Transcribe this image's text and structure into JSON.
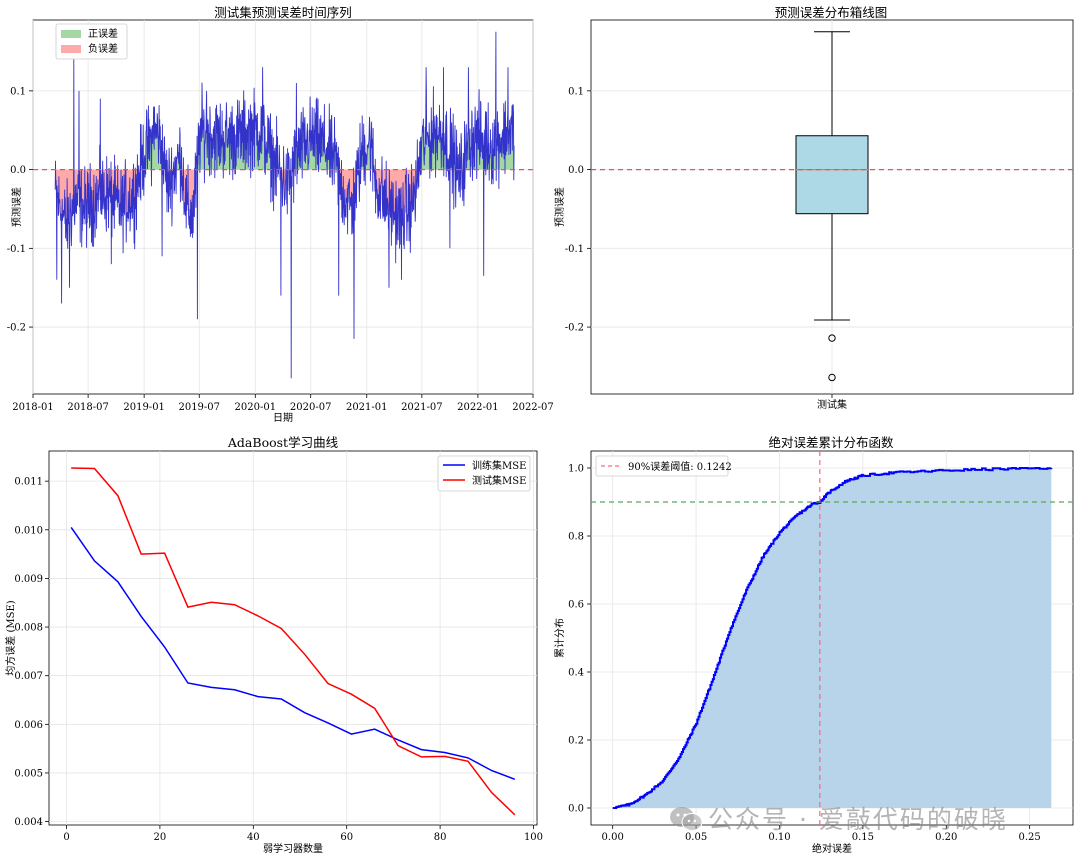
{
  "watermark": {
    "text": "公众号 · 爱敲代码的破晓"
  },
  "chart_data": [
    {
      "type": "area",
      "title": "测试集预测误差时间序列",
      "xlabel": "日期",
      "ylabel": "预测误差",
      "x_ticks": [
        "2018-01",
        "2018-07",
        "2019-01",
        "2019-07",
        "2020-01",
        "2020-07",
        "2021-01",
        "2021-07",
        "2022-01",
        "2022-07"
      ],
      "y_ticks": [
        -0.2,
        -0.1,
        0.0,
        0.1
      ],
      "xlim": [
        "2018-01-01",
        "2022-07-01"
      ],
      "ylim": [
        -0.285,
        0.19
      ],
      "legend": [
        {
          "label": "正误差",
          "color": "#a3d7a3"
        },
        {
          "label": "负误差",
          "color": "#ffaaaa"
        }
      ],
      "legend_position": "top-left",
      "zero_line": 0,
      "line_color": "#3333cc",
      "x_start": "2018-03-15",
      "x_end": "2022-04-30",
      "noise": 0.05,
      "anchors": [
        [
          "2018-03-15",
          -0.03
        ],
        [
          "2018-04-20",
          -0.07
        ],
        [
          "2018-05-20",
          -0.04
        ],
        [
          "2018-06-20",
          -0.05
        ],
        [
          "2018-07-20",
          -0.04
        ],
        [
          "2018-09-01",
          -0.03
        ],
        [
          "2018-10-15",
          -0.05
        ],
        [
          "2018-12-01",
          -0.03
        ],
        [
          "2019-01-01",
          0.02
        ],
        [
          "2019-02-15",
          0.05
        ],
        [
          "2019-03-20",
          -0.02
        ],
        [
          "2019-05-01",
          0.02
        ],
        [
          "2019-05-20",
          -0.05
        ],
        [
          "2019-06-10",
          -0.06
        ],
        [
          "2019-07-05",
          0.05
        ],
        [
          "2019-09-01",
          0.04
        ],
        [
          "2019-11-01",
          0.04
        ],
        [
          "2019-12-20",
          0.05
        ],
        [
          "2020-01-20",
          0.05
        ],
        [
          "2020-03-01",
          0.01
        ],
        [
          "2020-04-15",
          -0.02
        ],
        [
          "2020-05-20",
          0.02
        ],
        [
          "2020-07-01",
          0.04
        ],
        [
          "2020-08-15",
          0.03
        ],
        [
          "2020-09-20",
          0.01
        ],
        [
          "2020-10-15",
          -0.03
        ],
        [
          "2020-11-15",
          -0.05
        ],
        [
          "2020-12-15",
          0.02
        ],
        [
          "2021-01-10",
          0.04
        ],
        [
          "2021-02-01",
          -0.02
        ],
        [
          "2021-03-01",
          -0.04
        ],
        [
          "2021-04-15",
          -0.06
        ],
        [
          "2021-05-20",
          -0.05
        ],
        [
          "2021-06-10",
          -0.03
        ],
        [
          "2021-07-01",
          0.03
        ],
        [
          "2021-08-20",
          0.05
        ],
        [
          "2021-10-01",
          0.03
        ],
        [
          "2021-11-01",
          -0.01
        ],
        [
          "2021-12-10",
          0.04
        ],
        [
          "2022-01-15",
          0.04
        ],
        [
          "2022-02-15",
          0.03
        ],
        [
          "2022-03-15",
          0.04
        ],
        [
          "2022-04-30",
          0.05
        ]
      ],
      "extremes": [
        [
          "2018-03-20",
          -0.14
        ],
        [
          "2018-04-05",
          -0.17
        ],
        [
          "2018-05-01",
          -0.15
        ],
        [
          "2018-05-15",
          0.14
        ],
        [
          "2018-06-01",
          0.1
        ],
        [
          "2018-08-10",
          0.09
        ],
        [
          "2018-09-15",
          -0.12
        ],
        [
          "2019-02-01",
          0.08
        ],
        [
          "2019-03-01",
          -0.11
        ],
        [
          "2019-06-25",
          -0.19
        ],
        [
          "2019-07-25",
          0.1
        ],
        [
          "2020-01-25",
          0.13
        ],
        [
          "2020-03-25",
          -0.16
        ],
        [
          "2020-04-28",
          -0.265
        ],
        [
          "2020-05-15",
          0.11
        ],
        [
          "2020-10-01",
          -0.16
        ],
        [
          "2020-11-20",
          -0.215
        ],
        [
          "2021-03-15",
          -0.15
        ],
        [
          "2021-04-25",
          -0.14
        ],
        [
          "2021-07-15",
          0.13
        ],
        [
          "2021-09-10",
          0.13
        ],
        [
          "2021-10-01",
          -0.1
        ],
        [
          "2021-12-01",
          0.13
        ],
        [
          "2022-01-20",
          -0.135
        ],
        [
          "2022-03-01",
          0.175
        ],
        [
          "2022-04-10",
          0.13
        ]
      ]
    },
    {
      "type": "box",
      "title": "预测误差分布箱线图",
      "ylabel": "预测误差",
      "categories": [
        "测试集"
      ],
      "ylim": [
        -0.285,
        0.19
      ],
      "y_ticks": [
        -0.2,
        -0.1,
        0.0,
        0.1
      ],
      "whisker_low": -0.191,
      "q1": -0.056,
      "median": 0.0,
      "q3": 0.043,
      "whisker_high": 0.175,
      "outliers": [
        -0.214,
        -0.264
      ],
      "box_color": "#add8e6",
      "zero_line": 0
    },
    {
      "type": "line",
      "title": "AdaBoost学习曲线",
      "xlabel": "弱学习器数量",
      "ylabel": "均方误差 (MSE)",
      "x": [
        1,
        6,
        11,
        16,
        21,
        26,
        31,
        36,
        41,
        46,
        51,
        56,
        61,
        66,
        71,
        76,
        81,
        86,
        91,
        96
      ],
      "x_ticks": [
        0,
        20,
        40,
        60,
        80,
        100
      ],
      "y_ticks": [
        0.004,
        0.005,
        0.006,
        0.007,
        0.008,
        0.009,
        0.01,
        0.011
      ],
      "xlim": [
        -3.75,
        100.75
      ],
      "ylim": [
        0.00393,
        0.01162
      ],
      "legend_position": "top-right",
      "series": [
        {
          "name": "训练集MSE",
          "color": "#0000ff",
          "values": [
            0.01005,
            0.00936,
            0.00893,
            0.00822,
            0.00759,
            0.00685,
            0.00676,
            0.00671,
            0.00657,
            0.00652,
            0.00624,
            0.00603,
            0.0058,
            0.0059,
            0.00568,
            0.00548,
            0.00542,
            0.00531,
            0.00505,
            0.00487
          ]
        },
        {
          "name": "测试集MSE",
          "color": "#ff0000",
          "values": [
            0.01127,
            0.01126,
            0.0107,
            0.0095,
            0.00952,
            0.00841,
            0.00851,
            0.00846,
            0.00823,
            0.00797,
            0.00744,
            0.00684,
            0.00662,
            0.00633,
            0.00556,
            0.00533,
            0.00534,
            0.00524,
            0.0046,
            0.00414
          ]
        }
      ]
    },
    {
      "type": "area",
      "title": "绝对误差累计分布函数",
      "xlabel": "绝对误差",
      "ylabel": "累计分布",
      "x_ticks": [
        0.0,
        0.05,
        0.1,
        0.15,
        0.2,
        0.25
      ],
      "y_ticks": [
        0.0,
        0.2,
        0.4,
        0.6,
        0.8,
        1.0
      ],
      "xlim": [
        -0.013,
        0.276
      ],
      "ylim": [
        -0.05,
        1.05
      ],
      "legend": [
        {
          "label": "90%误差阈值: 0.1242",
          "color": "#ff6680"
        }
      ],
      "legend_position": "top-left",
      "threshold_x": 0.1242,
      "threshold_y": 0.9,
      "line_color": "#0000ff",
      "fill_color": "#b8d4ea",
      "points": [
        [
          0,
          0
        ],
        [
          0.01,
          0.01
        ],
        [
          0.02,
          0.04
        ],
        [
          0.03,
          0.08
        ],
        [
          0.04,
          0.15
        ],
        [
          0.05,
          0.25
        ],
        [
          0.06,
          0.38
        ],
        [
          0.07,
          0.52
        ],
        [
          0.08,
          0.64
        ],
        [
          0.09,
          0.74
        ],
        [
          0.1,
          0.81
        ],
        [
          0.11,
          0.86
        ],
        [
          0.12,
          0.895
        ],
        [
          0.1242,
          0.9
        ],
        [
          0.13,
          0.93
        ],
        [
          0.14,
          0.962
        ],
        [
          0.15,
          0.978
        ],
        [
          0.17,
          0.987
        ],
        [
          0.2,
          0.993
        ],
        [
          0.23,
          0.997
        ],
        [
          0.263,
          1.0
        ]
      ]
    }
  ]
}
